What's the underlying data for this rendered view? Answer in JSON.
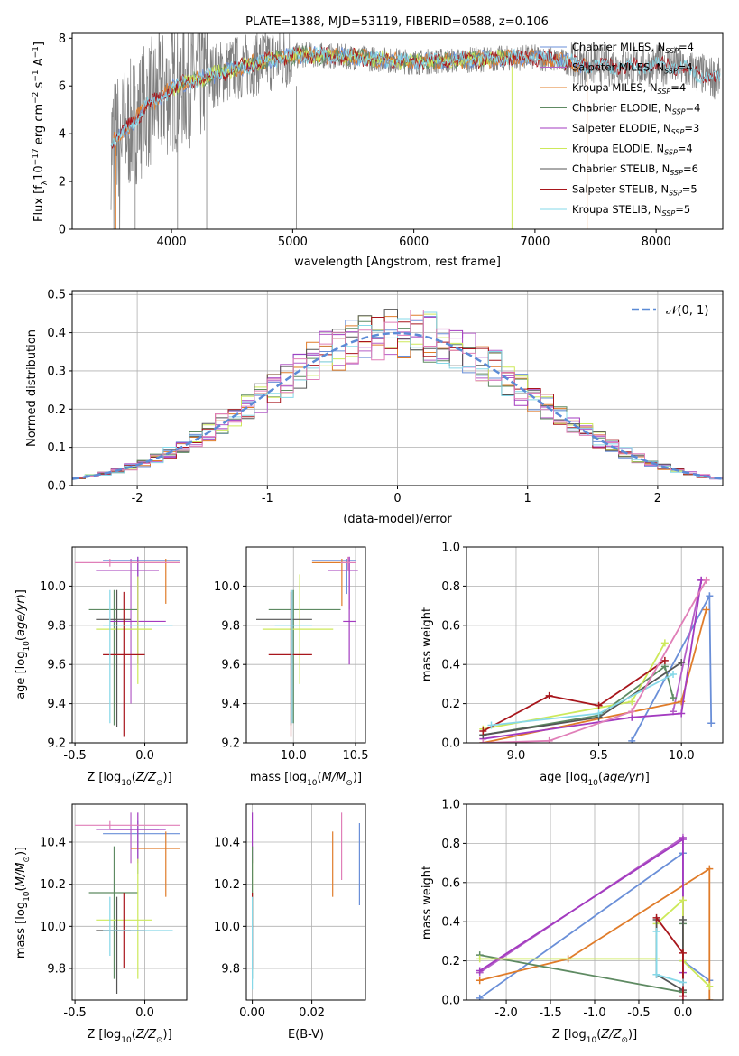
{
  "title": "PLATE=1388, MJD=53119, FIBERID=0588, z=0.106",
  "colors": {
    "Chabrier MILES": "#6a8fd8",
    "Salpeter MILES": "#b45ec7",
    "Kroupa MILES": "#e07c2a",
    "Chabrier ELODIE": "#5e8a62",
    "Salpeter ELODIE": "#a33bc0",
    "Kroupa ELODIE": "#cde95a",
    "Chabrier STELIB": "#555555",
    "Salpeter STELIB": "#a8161c",
    "Kroupa STELIB": "#86d8e8",
    "pink": "#e07fb8",
    "gaussian": "#5b8bd6"
  },
  "chart_data": [
    {
      "type": "line",
      "title": "PLATE=1388, MJD=53119, FIBERID=0588, z=0.106",
      "xlabel": "wavelength [Angstrom, rest frame]",
      "ylabel": "Flux [fλ10⁻¹⁷ erg cm⁻² s⁻¹ A⁻¹]",
      "xlim": [
        3180,
        8550
      ],
      "ylim": [
        0,
        8.2
      ],
      "xticks": [
        4000,
        5000,
        6000,
        7000,
        8000
      ],
      "yticks": [
        0,
        2,
        4,
        6,
        8
      ],
      "legend_position": "top-right",
      "legend": [
        "Chabrier MILES, N_SSP=4",
        "Salpeter MILES, N_SSP=4",
        "Kroupa MILES, N_SSP=4",
        "Chabrier ELODIE, N_SSP=4",
        "Salpeter ELODIE, N_SSP=3",
        "Kroupa ELODIE, N_SSP=4",
        "Chabrier STELIB, N_SSP=6",
        "Salpeter STELIB, N_SSP=5",
        "Kroupa STELIB, N_SSP=5"
      ],
      "continuum_x": [
        3500,
        3600,
        3700,
        3800,
        3900,
        4000,
        4100,
        4300,
        4500,
        4800,
        5100,
        5500,
        6000,
        6500,
        7000,
        7400,
        7800,
        8100,
        8500
      ],
      "continuum_y": [
        3.6,
        4.0,
        4.6,
        5.2,
        5.5,
        5.9,
        6.1,
        6.4,
        6.7,
        7.1,
        7.3,
        7.2,
        7.0,
        7.1,
        7.2,
        6.9,
        6.8,
        6.9,
        6.3
      ]
    },
    {
      "type": "line",
      "xlabel": "(data-model)/error",
      "ylabel": "Normed distribution",
      "xlim": [
        -2.5,
        2.5
      ],
      "ylim": [
        0,
        0.51
      ],
      "xticks": [
        -2,
        -1,
        0,
        1,
        2
      ],
      "yticks": [
        0.0,
        0.1,
        0.2,
        0.3,
        0.4,
        0.5
      ],
      "legend": [
        "𝒩(0, 1)"
      ],
      "legend_position": "top-right",
      "hist_bin_width": 0.1
    },
    {
      "type": "scatter",
      "xlabel": "Z [log10(Z/Z⊙)]",
      "ylabel": "age  [log10(age/yr)]",
      "xlim": [
        -0.52,
        0.3
      ],
      "ylim": [
        9.2,
        10.2
      ],
      "xticks": [
        -0.5,
        0.0
      ],
      "yticks": [
        9.2,
        9.4,
        9.6,
        9.8,
        10.0
      ],
      "points": [
        {
          "s": "Chabrier MILES",
          "x": -0.05,
          "y": 10.13,
          "xlo": -0.3,
          "xhi": 0.25,
          "ylo": 9.8,
          "yhi": 10.15
        },
        {
          "s": "Salpeter MILES",
          "x": -0.1,
          "y": 10.08,
          "xlo": -0.35,
          "xhi": 0.1,
          "ylo": 9.4,
          "yhi": 10.14
        },
        {
          "s": "Kroupa MILES",
          "x": 0.15,
          "y": 10.12,
          "xlo": -0.1,
          "xhi": 0.25,
          "ylo": 9.91,
          "yhi": 10.14
        },
        {
          "s": "Chabrier ELODIE",
          "x": -0.22,
          "y": 9.88,
          "xlo": -0.4,
          "xhi": -0.05,
          "ylo": 9.29,
          "yhi": 9.98
        },
        {
          "s": "Salpeter ELODIE",
          "x": -0.05,
          "y": 9.82,
          "xlo": -0.25,
          "xhi": 0.15,
          "ylo": 9.6,
          "yhi": 10.15
        },
        {
          "s": "Kroupa ELODIE",
          "x": -0.05,
          "y": 9.78,
          "xlo": -0.35,
          "xhi": 0.05,
          "ylo": 9.5,
          "yhi": 10.05
        },
        {
          "s": "Chabrier STELIB",
          "x": -0.2,
          "y": 9.83,
          "xlo": -0.35,
          "xhi": -0.1,
          "ylo": 9.28,
          "yhi": 9.98
        },
        {
          "s": "Salpeter STELIB",
          "x": -0.15,
          "y": 9.65,
          "xlo": -0.3,
          "xhi": 0.0,
          "ylo": 9.23,
          "yhi": 9.97
        },
        {
          "s": "Kroupa STELIB",
          "x": -0.25,
          "y": 9.8,
          "xlo": -0.3,
          "xhi": 0.2,
          "ylo": 9.3,
          "yhi": 9.98
        },
        {
          "s": "pink",
          "x": -0.25,
          "y": 10.12,
          "xlo": -0.5,
          "xhi": 0.25,
          "ylo": 10.1,
          "yhi": 10.14
        }
      ]
    },
    {
      "type": "scatter",
      "xlabel": "mass [log10(M/M⊙)]",
      "xlim": [
        9.62,
        10.58
      ],
      "ylim": [
        9.2,
        10.2
      ],
      "xticks": [
        10.0,
        10.5
      ],
      "yticks": [
        9.2,
        9.4,
        9.6,
        9.8,
        10.0
      ],
      "points": [
        {
          "s": "Chabrier MILES",
          "x": 10.43,
          "y": 10.13,
          "xlo": 10.15,
          "xhi": 10.5,
          "ylo": 9.96,
          "yhi": 10.14
        },
        {
          "s": "Salpeter MILES",
          "x": 10.45,
          "y": 10.08,
          "xlo": 10.28,
          "xhi": 10.52,
          "ylo": 9.88,
          "yhi": 10.15
        },
        {
          "s": "Kroupa MILES",
          "x": 10.39,
          "y": 10.12,
          "xlo": 10.15,
          "xhi": 10.45,
          "ylo": 9.9,
          "yhi": 10.14
        },
        {
          "s": "Chabrier ELODIE",
          "x": 10.0,
          "y": 9.88,
          "xlo": 9.8,
          "xhi": 10.38,
          "ylo": 9.3,
          "yhi": 9.98
        },
        {
          "s": "Salpeter ELODIE",
          "x": 10.45,
          "y": 9.82,
          "xlo": 10.4,
          "xhi": 10.5,
          "ylo": 9.6,
          "yhi": 10.15
        },
        {
          "s": "Kroupa ELODIE",
          "x": 10.05,
          "y": 9.78,
          "xlo": 9.75,
          "xhi": 10.32,
          "ylo": 9.5,
          "yhi": 10.06
        },
        {
          "s": "Chabrier STELIB",
          "x": 9.98,
          "y": 9.83,
          "xlo": 9.7,
          "xhi": 10.15,
          "ylo": 9.29,
          "yhi": 9.98
        },
        {
          "s": "Salpeter STELIB",
          "x": 9.98,
          "y": 9.65,
          "xlo": 9.8,
          "xhi": 10.15,
          "ylo": 9.23,
          "yhi": 9.97
        },
        {
          "s": "Kroupa STELIB",
          "x": 9.99,
          "y": 9.8,
          "xlo": 9.85,
          "xhi": 10.15,
          "ylo": 9.3,
          "yhi": 9.98
        },
        {
          "s": "pink",
          "x": 10.44,
          "y": 10.12,
          "xlo": 10.38,
          "xhi": 10.5,
          "ylo": 10.08,
          "yhi": 10.15
        }
      ]
    },
    {
      "type": "line",
      "xlabel": "age  [log10(age/yr)]",
      "ylabel": "mass weight",
      "xlim": [
        8.7,
        10.25
      ],
      "ylim": [
        0,
        1.0
      ],
      "xticks": [
        9.0,
        9.5,
        10.0
      ],
      "yticks": [
        0.0,
        0.2,
        0.4,
        0.6,
        0.8,
        1.0
      ],
      "series": [
        {
          "s": "Chabrier MILES",
          "x": [
            9.7,
            10.17,
            10.18
          ],
          "y": [
            0.01,
            0.75,
            0.1
          ]
        },
        {
          "s": "Salpeter MILES",
          "x": [
            9.95,
            10.12
          ],
          "y": [
            0.16,
            0.83
          ]
        },
        {
          "s": "Kroupa MILES",
          "x": [
            8.8,
            10.0,
            10.15
          ],
          "y": [
            0.0,
            0.21,
            0.68
          ]
        },
        {
          "s": "Chabrier ELODIE",
          "x": [
            8.8,
            9.5,
            9.9,
            9.95
          ],
          "y": [
            0.04,
            0.14,
            0.39,
            0.23
          ]
        },
        {
          "s": "Salpeter ELODIE",
          "x": [
            8.8,
            9.7,
            10.0,
            10.12
          ],
          "y": [
            0.02,
            0.13,
            0.15,
            0.83
          ]
        },
        {
          "s": "Kroupa ELODIE",
          "x": [
            8.8,
            9.7,
            9.9
          ],
          "y": [
            0.07,
            0.21,
            0.51
          ]
        },
        {
          "s": "Chabrier STELIB",
          "x": [
            8.8,
            9.5,
            10.0
          ],
          "y": [
            0.04,
            0.13,
            0.41
          ]
        },
        {
          "s": "Salpeter STELIB",
          "x": [
            8.8,
            9.2,
            9.5,
            9.9
          ],
          "y": [
            0.06,
            0.24,
            0.19,
            0.42
          ]
        },
        {
          "s": "Kroupa STELIB",
          "x": [
            8.85,
            9.5,
            9.95
          ],
          "y": [
            0.09,
            0.15,
            0.35
          ]
        },
        {
          "s": "pink",
          "x": [
            8.8,
            9.2,
            9.7,
            10.15
          ],
          "y": [
            0.0,
            0.01,
            0.16,
            0.83
          ]
        }
      ]
    },
    {
      "type": "scatter",
      "xlabel": "Z [log10(Z/Z⊙)]",
      "ylabel": "mass [log10(M/M⊙)]",
      "xlim": [
        -0.52,
        0.3
      ],
      "ylim": [
        9.65,
        10.58
      ],
      "xticks": [
        -0.5,
        0.0
      ],
      "yticks": [
        9.8,
        10.0,
        10.2,
        10.4
      ],
      "points": [
        {
          "s": "Chabrier MILES",
          "x": -0.05,
          "y": 10.44,
          "xlo": -0.3,
          "xhi": 0.25,
          "ylo": 10.25,
          "yhi": 10.5
        },
        {
          "s": "Salpeter MILES",
          "x": -0.1,
          "y": 10.46,
          "xlo": -0.35,
          "xhi": 0.1,
          "ylo": 10.3,
          "yhi": 10.54
        },
        {
          "s": "Kroupa MILES",
          "x": 0.15,
          "y": 10.37,
          "xlo": -0.1,
          "xhi": 0.25,
          "ylo": 10.14,
          "yhi": 10.45
        },
        {
          "s": "Chabrier ELODIE",
          "x": -0.22,
          "y": 10.16,
          "xlo": -0.4,
          "xhi": -0.05,
          "ylo": 9.75,
          "yhi": 10.38
        },
        {
          "s": "Salpeter ELODIE",
          "x": -0.05,
          "y": 10.46,
          "xlo": -0.25,
          "xhi": 0.15,
          "ylo": 10.3,
          "yhi": 10.54
        },
        {
          "s": "Kroupa ELODIE",
          "x": -0.05,
          "y": 10.03,
          "xlo": -0.35,
          "xhi": 0.05,
          "ylo": 9.75,
          "yhi": 10.32
        },
        {
          "s": "Chabrier STELIB",
          "x": -0.2,
          "y": 9.98,
          "xlo": -0.35,
          "xhi": -0.1,
          "ylo": 9.68,
          "yhi": 10.14
        },
        {
          "s": "Salpeter STELIB",
          "x": -0.15,
          "y": 9.98,
          "xlo": -0.3,
          "xhi": 0.0,
          "ylo": 9.8,
          "yhi": 10.16
        },
        {
          "s": "Kroupa STELIB",
          "x": -0.25,
          "y": 9.98,
          "xlo": -0.3,
          "xhi": 0.2,
          "ylo": 9.86,
          "yhi": 10.14
        },
        {
          "s": "pink",
          "x": -0.25,
          "y": 10.48,
          "xlo": -0.5,
          "xhi": 0.25,
          "ylo": 10.46,
          "yhi": 10.5
        }
      ]
    },
    {
      "type": "scatter",
      "xlabel": "E(B-V)",
      "xlim": [
        -0.002,
        0.038
      ],
      "ylim": [
        9.65,
        10.58
      ],
      "xticks": [
        0.0,
        0.02
      ],
      "yticks": [
        9.8,
        10.0,
        10.2,
        10.4
      ],
      "points": [
        {
          "s": "Chabrier MILES",
          "x": 0.036,
          "ylo": 10.1,
          "yhi": 10.49
        },
        {
          "s": "pink",
          "x": 0.03,
          "ylo": 10.22,
          "yhi": 10.54
        },
        {
          "s": "Kroupa MILES",
          "x": 0.027,
          "ylo": 10.14,
          "yhi": 10.45
        },
        {
          "s": "Salpeter ELODIE",
          "x": 0.0,
          "ylo": 10.3,
          "yhi": 10.54
        },
        {
          "s": "Kroupa ELODIE",
          "x": 0.0,
          "ylo": 10.0,
          "yhi": 10.32
        },
        {
          "s": "Chabrier ELODIE",
          "x": 0.0,
          "ylo": 9.75,
          "yhi": 10.38
        },
        {
          "s": "Salpeter STELIB",
          "x": 0.0,
          "ylo": 9.8,
          "yhi": 10.16
        },
        {
          "s": "Kroupa STELIB",
          "x": 0.0,
          "ylo": 9.7,
          "yhi": 10.14
        }
      ]
    },
    {
      "type": "line",
      "xlabel": "Z [log10(Z/Z⊙)]",
      "ylabel": "mass weight",
      "xlim": [
        -2.45,
        0.45
      ],
      "ylim": [
        0,
        1.0
      ],
      "xticks": [
        -2.0,
        -1.5,
        -1.0,
        -0.5,
        0.0
      ],
      "yticks": [
        0.0,
        0.2,
        0.4,
        0.6,
        0.8,
        1.0
      ],
      "series": [
        {
          "s": "Chabrier MILES",
          "x": [
            -2.3,
            0.0,
            0.0,
            0.3
          ],
          "y": [
            0.01,
            0.75,
            0.2,
            0.1
          ]
        },
        {
          "s": "Salpeter MILES",
          "x": [
            -2.3,
            0.0,
            0.0
          ],
          "y": [
            0.14,
            0.83,
            0.02
          ]
        },
        {
          "s": "Kroupa MILES",
          "x": [
            -2.3,
            -1.3,
            0.3,
            0.3
          ],
          "y": [
            0.1,
            0.21,
            0.67,
            0.0
          ]
        },
        {
          "s": "Chabrier ELODIE",
          "x": [
            -2.3,
            0.0,
            0.0
          ],
          "y": [
            0.23,
            0.04,
            0.39
          ]
        },
        {
          "s": "Salpeter ELODIE",
          "x": [
            -2.3,
            0.0,
            0.0
          ],
          "y": [
            0.15,
            0.82,
            0.14
          ]
        },
        {
          "s": "Kroupa ELODIE",
          "x": [
            -2.3,
            -0.3,
            -0.3,
            0.0,
            0.0,
            0.3
          ],
          "y": [
            0.21,
            0.21,
            0.39,
            0.51,
            0.2,
            0.07
          ]
        },
        {
          "s": "Chabrier STELIB",
          "x": [
            -0.3,
            -0.3,
            0.0,
            0.0
          ],
          "y": [
            0.41,
            0.13,
            0.05,
            0.41
          ]
        },
        {
          "s": "Salpeter STELIB",
          "x": [
            -0.3,
            0.0,
            0.0
          ],
          "y": [
            0.42,
            0.24,
            0.02
          ]
        },
        {
          "s": "Kroupa STELIB",
          "x": [
            -0.3,
            -0.3,
            0.0
          ],
          "y": [
            0.35,
            0.13,
            0.09
          ]
        }
      ]
    }
  ]
}
